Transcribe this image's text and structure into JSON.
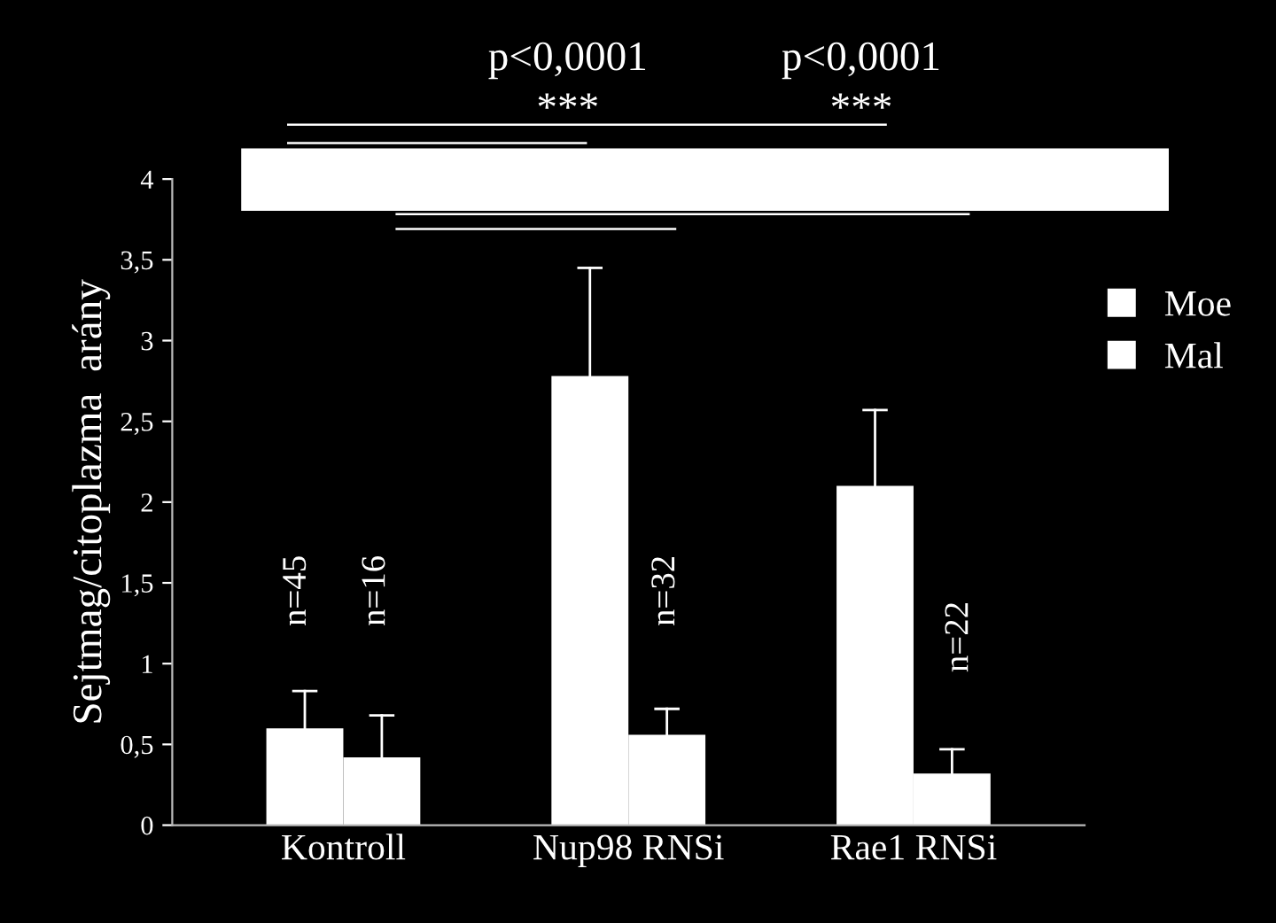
{
  "chart_data": {
    "type": "bar",
    "ylabel": "Sejtmag/citoplazma  arány",
    "categories": [
      "Kontroll",
      "Nup98 RNSi",
      "Rae1 RNSi"
    ],
    "series": [
      {
        "name": "Moe",
        "color": "#ffffff",
        "values": [
          0.6,
          2.78,
          2.1
        ],
        "errors": [
          [
            0.6,
            0.83
          ],
          [
            2.78,
            3.45
          ],
          [
            2.1,
            2.57
          ]
        ]
      },
      {
        "name": "Mal",
        "color": "#ffffff",
        "values": [
          0.42,
          0.56,
          0.32
        ],
        "errors": [
          [
            0.42,
            0.68
          ],
          [
            0.56,
            0.72
          ],
          [
            0.32,
            0.47
          ]
        ]
      }
    ],
    "ylim": [
      0,
      4
    ],
    "yticks": [
      0,
      {
        "value": 0.5,
        "label": "0,5"
      },
      1,
      {
        "value": 1.5,
        "label": "1,5"
      },
      2,
      {
        "value": 2.5,
        "label": "2,5"
      },
      3,
      {
        "value": 3.5,
        "label": "3,5"
      },
      4
    ],
    "annotations": [
      "n=45",
      "n=16",
      "n=32",
      "n=22",
      "p<0,0001",
      "p<0,0001",
      "***",
      "***"
    ],
    "legend": "top right",
    "grid": false
  }
}
